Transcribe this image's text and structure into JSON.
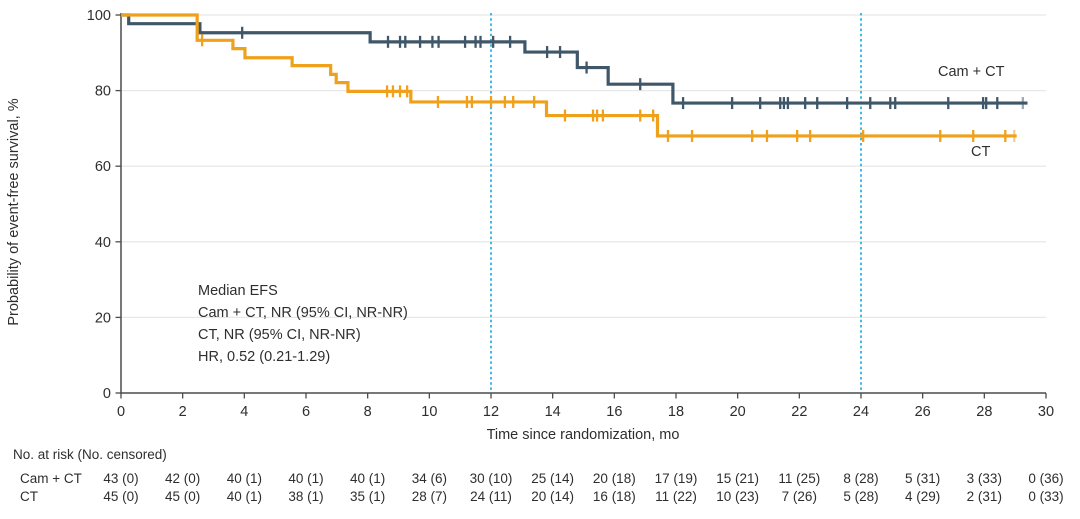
{
  "chart_data": {
    "type": "line",
    "style": "kaplan-meier-step",
    "title": "",
    "xlabel": "Time since randomization, mo",
    "ylabel": "Probability of event-free survival, %",
    "xlim": [
      0,
      30
    ],
    "ylim": [
      0,
      100
    ],
    "xticks": [
      0,
      2,
      4,
      6,
      8,
      10,
      12,
      14,
      16,
      18,
      20,
      22,
      24,
      26,
      28,
      30
    ],
    "yticks": [
      0,
      20,
      40,
      60,
      80,
      100
    ],
    "grid": "horizontal",
    "reference_lines_x": [
      12,
      24
    ],
    "reference_line_color": "#41B9E6",
    "grid_color": "#E8E8E8",
    "axis_color": "#4C4C4C",
    "legend_position": "inline-right",
    "series": [
      {
        "name": "Cam + CT",
        "color": "#3F5769",
        "points": [
          [
            0,
            100
          ],
          [
            0.25,
            97.7
          ],
          [
            2.56,
            95.3
          ],
          [
            8.08,
            92.9
          ],
          [
            13.1,
            90.2
          ],
          [
            14.8,
            86.1
          ],
          [
            15.8,
            81.7
          ],
          [
            17.9,
            76.7
          ]
        ],
        "end_x": 29.4,
        "censor_marks": [
          [
            3.93,
            95.3
          ],
          [
            8.66,
            92.9
          ],
          [
            9.05,
            92.9
          ],
          [
            9.22,
            92.9
          ],
          [
            9.7,
            92.9
          ],
          [
            10.1,
            92.9
          ],
          [
            10.3,
            92.9
          ],
          [
            11.16,
            92.9
          ],
          [
            11.5,
            92.9
          ],
          [
            11.66,
            92.9
          ],
          [
            12.07,
            92.9
          ],
          [
            12.62,
            92.9
          ],
          [
            13.82,
            90.2
          ],
          [
            14.24,
            90.2
          ],
          [
            15.1,
            86.1
          ],
          [
            16.84,
            81.7
          ],
          [
            18.23,
            76.7
          ],
          [
            19.82,
            76.7
          ],
          [
            20.73,
            76.7
          ],
          [
            21.38,
            76.7
          ],
          [
            21.5,
            76.7
          ],
          [
            21.63,
            76.7
          ],
          [
            22.19,
            76.7
          ],
          [
            22.58,
            76.7
          ],
          [
            23.55,
            76.7
          ],
          [
            24.3,
            76.7
          ],
          [
            24.95,
            76.7
          ],
          [
            25.11,
            76.7
          ],
          [
            26.83,
            76.7
          ],
          [
            27.96,
            76.7
          ],
          [
            28.06,
            76.7
          ],
          [
            28.42,
            76.7
          ],
          [
            29.25,
            76.7
          ]
        ]
      },
      {
        "name": "CT",
        "color": "#F0A11B",
        "points": [
          [
            0,
            100
          ],
          [
            2.47,
            93.3
          ],
          [
            3.63,
            91.1
          ],
          [
            4.02,
            88.7
          ],
          [
            5.55,
            86.6
          ],
          [
            6.8,
            84.3
          ],
          [
            6.98,
            82.1
          ],
          [
            7.36,
            79.8
          ],
          [
            9.4,
            77.0
          ],
          [
            13.8,
            73.4
          ],
          [
            17.4,
            68.0
          ]
        ],
        "end_x": 29.05,
        "censor_marks": [
          [
            2.63,
            93.3
          ],
          [
            8.63,
            79.8
          ],
          [
            8.82,
            79.8
          ],
          [
            9.05,
            79.8
          ],
          [
            9.28,
            79.8
          ],
          [
            10.28,
            77.0
          ],
          [
            11.22,
            77.0
          ],
          [
            11.38,
            77.0
          ],
          [
            12.0,
            77.0
          ],
          [
            12.45,
            77.0
          ],
          [
            12.72,
            77.0
          ],
          [
            13.4,
            77.0
          ],
          [
            14.4,
            73.4
          ],
          [
            15.31,
            73.4
          ],
          [
            15.44,
            73.4
          ],
          [
            15.63,
            73.4
          ],
          [
            16.84,
            73.4
          ],
          [
            17.26,
            73.4
          ],
          [
            17.74,
            68.0
          ],
          [
            18.52,
            68.0
          ],
          [
            20.47,
            68.0
          ],
          [
            20.95,
            68.0
          ],
          [
            21.93,
            68.0
          ],
          [
            22.35,
            68.0
          ],
          [
            24.07,
            68.0
          ],
          [
            26.57,
            68.0
          ],
          [
            27.64,
            68.0
          ],
          [
            28.68,
            68.0
          ],
          [
            28.97,
            68.0
          ]
        ]
      }
    ]
  },
  "annotation": {
    "lines": [
      "Median EFS",
      "Cam + CT, NR (95% CI, NR-NR)",
      "CT, NR (95% CI, NR-NR)",
      "HR, 0.52 (0.21-1.29)"
    ]
  },
  "legend": {
    "cam_ct": "Cam + CT",
    "ct": "CT"
  },
  "risk_table": {
    "header": "No. at risk (No. censored)",
    "times": [
      0,
      2,
      4,
      6,
      8,
      10,
      12,
      14,
      16,
      18,
      20,
      22,
      24,
      26,
      28,
      30
    ],
    "rows": [
      {
        "label": "Cam + CT",
        "values": [
          "43 (0)",
          "42 (0)",
          "40 (1)",
          "40 (1)",
          "40 (1)",
          "34 (6)",
          "30 (10)",
          "25 (14)",
          "20 (18)",
          "17 (19)",
          "15 (21)",
          "11 (25)",
          "8 (28)",
          "5 (31)",
          "3 (33)",
          "0 (36)"
        ]
      },
      {
        "label": "CT",
        "values": [
          "45 (0)",
          "45 (0)",
          "40 (1)",
          "38 (1)",
          "35 (1)",
          "28 (7)",
          "24 (11)",
          "20 (14)",
          "16 (18)",
          "11 (22)",
          "10 (23)",
          "7 (26)",
          "5 (28)",
          "4 (29)",
          "2 (31)",
          "0 (33)"
        ]
      }
    ]
  },
  "colors": {
    "cam_ct_line": "#3F5769",
    "ct_line": "#F0A11B",
    "reference_dotted": "#41B9E6",
    "gridline": "#E8E8E8",
    "axis": "#4C4C4C",
    "text": "#2E2E2E"
  }
}
